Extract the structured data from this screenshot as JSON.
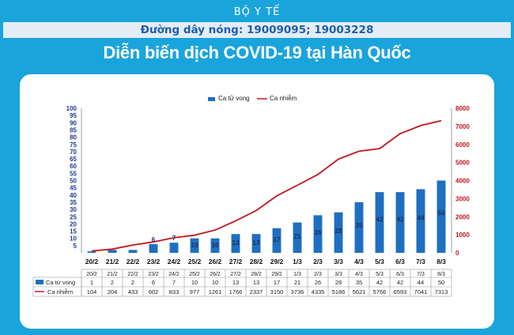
{
  "header": {
    "org": "BỘ Y TẾ",
    "hotline": "Đường dây nóng: 19009095; 19003228",
    "title": "Diễn biến  dịch COVID-19 tại Hàn Quốc"
  },
  "colors": {
    "background": "#1aa4dc",
    "bar": "#1f6fc1",
    "line": "#c0161d",
    "left_axis": "#1f3c8c",
    "right_axis": "#c0161d"
  },
  "chart_data": {
    "type": "bar",
    "categories": [
      "20/2",
      "21/2",
      "22/2",
      "23/2",
      "24/2",
      "25/2",
      "26/2",
      "27/2",
      "28/2",
      "29/2",
      "1/3",
      "2/3",
      "3/3",
      "4/3",
      "5/3",
      "6/3",
      "7/3",
      "8/3"
    ],
    "series": [
      {
        "name": "Ca tử vong",
        "type": "bar",
        "axis": "left",
        "values": [
          1,
          2,
          2,
          6,
          7,
          10,
          10,
          13,
          13,
          17,
          21,
          26,
          28,
          35,
          42,
          42,
          44,
          50
        ]
      },
      {
        "name": "Ca nhiễm",
        "type": "line",
        "axis": "right",
        "values": [
          104,
          204,
          433,
          602,
          833,
          977,
          1261,
          1766,
          2337,
          3150,
          3736,
          4335,
          5186,
          5621,
          5766,
          6593,
          7041,
          7313
        ]
      }
    ],
    "left_ticks": [
      5,
      10,
      15,
      20,
      25,
      30,
      35,
      40,
      45,
      50,
      55,
      60,
      65,
      70,
      75,
      80,
      85,
      90,
      95,
      100
    ],
    "right_ticks": [
      0,
      1000,
      2000,
      3000,
      4000,
      5000,
      6000,
      7000,
      8000
    ],
    "left_ylim": [
      0,
      100
    ],
    "right_ylim": [
      0,
      8000
    ],
    "bar_labels_from": 3,
    "legend_position": "top-center",
    "grid": false
  }
}
